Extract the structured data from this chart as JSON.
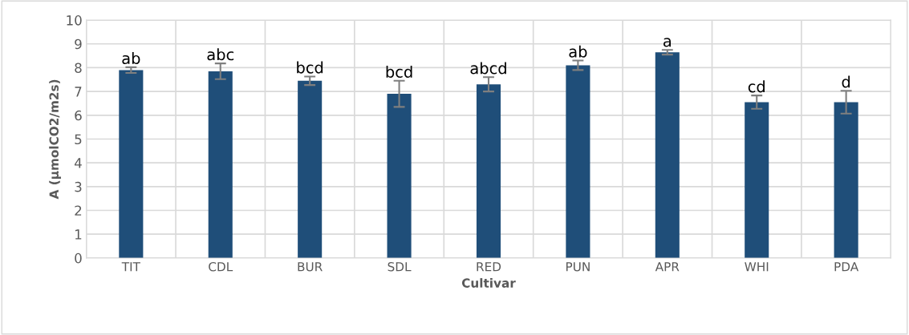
{
  "chart_data": {
    "type": "bar",
    "xlabel": "Cultivar",
    "ylabel": "A (µmolCO2/m2s)",
    "categories": [
      "TIT",
      "CDL",
      "BUR",
      "SDL",
      "RED",
      "PUN",
      "APR",
      "WHI",
      "PDA"
    ],
    "values": [
      7.9,
      7.85,
      7.45,
      6.9,
      7.3,
      8.1,
      8.65,
      6.55,
      6.55
    ],
    "errors": [
      0.12,
      0.33,
      0.18,
      0.55,
      0.3,
      0.2,
      0.1,
      0.28,
      0.48
    ],
    "color": "#1f4e79",
    "ylim": [
      0,
      10
    ],
    "yticks": [
      0,
      1,
      2,
      3,
      4,
      5,
      6,
      7,
      8,
      9,
      10
    ],
    "grid": true,
    "annotations": [
      {
        "text": "ab",
        "x": "TIT",
        "y": 8.02
      },
      {
        "text": "abc",
        "x": "CDL",
        "y": 8.18
      },
      {
        "text": "bcd",
        "x": "BUR",
        "y": 7.63
      },
      {
        "text": "bcd",
        "x": "SDL",
        "y": 7.45
      },
      {
        "text": "abcd",
        "x": "RED",
        "y": 7.6
      },
      {
        "text": "ab",
        "x": "PUN",
        "y": 8.3
      },
      {
        "text": "a",
        "x": "APR",
        "y": 8.75
      },
      {
        "text": "cd",
        "x": "WHI",
        "y": 6.83
      },
      {
        "text": "d",
        "x": "PDA",
        "y": 7.03
      }
    ]
  }
}
